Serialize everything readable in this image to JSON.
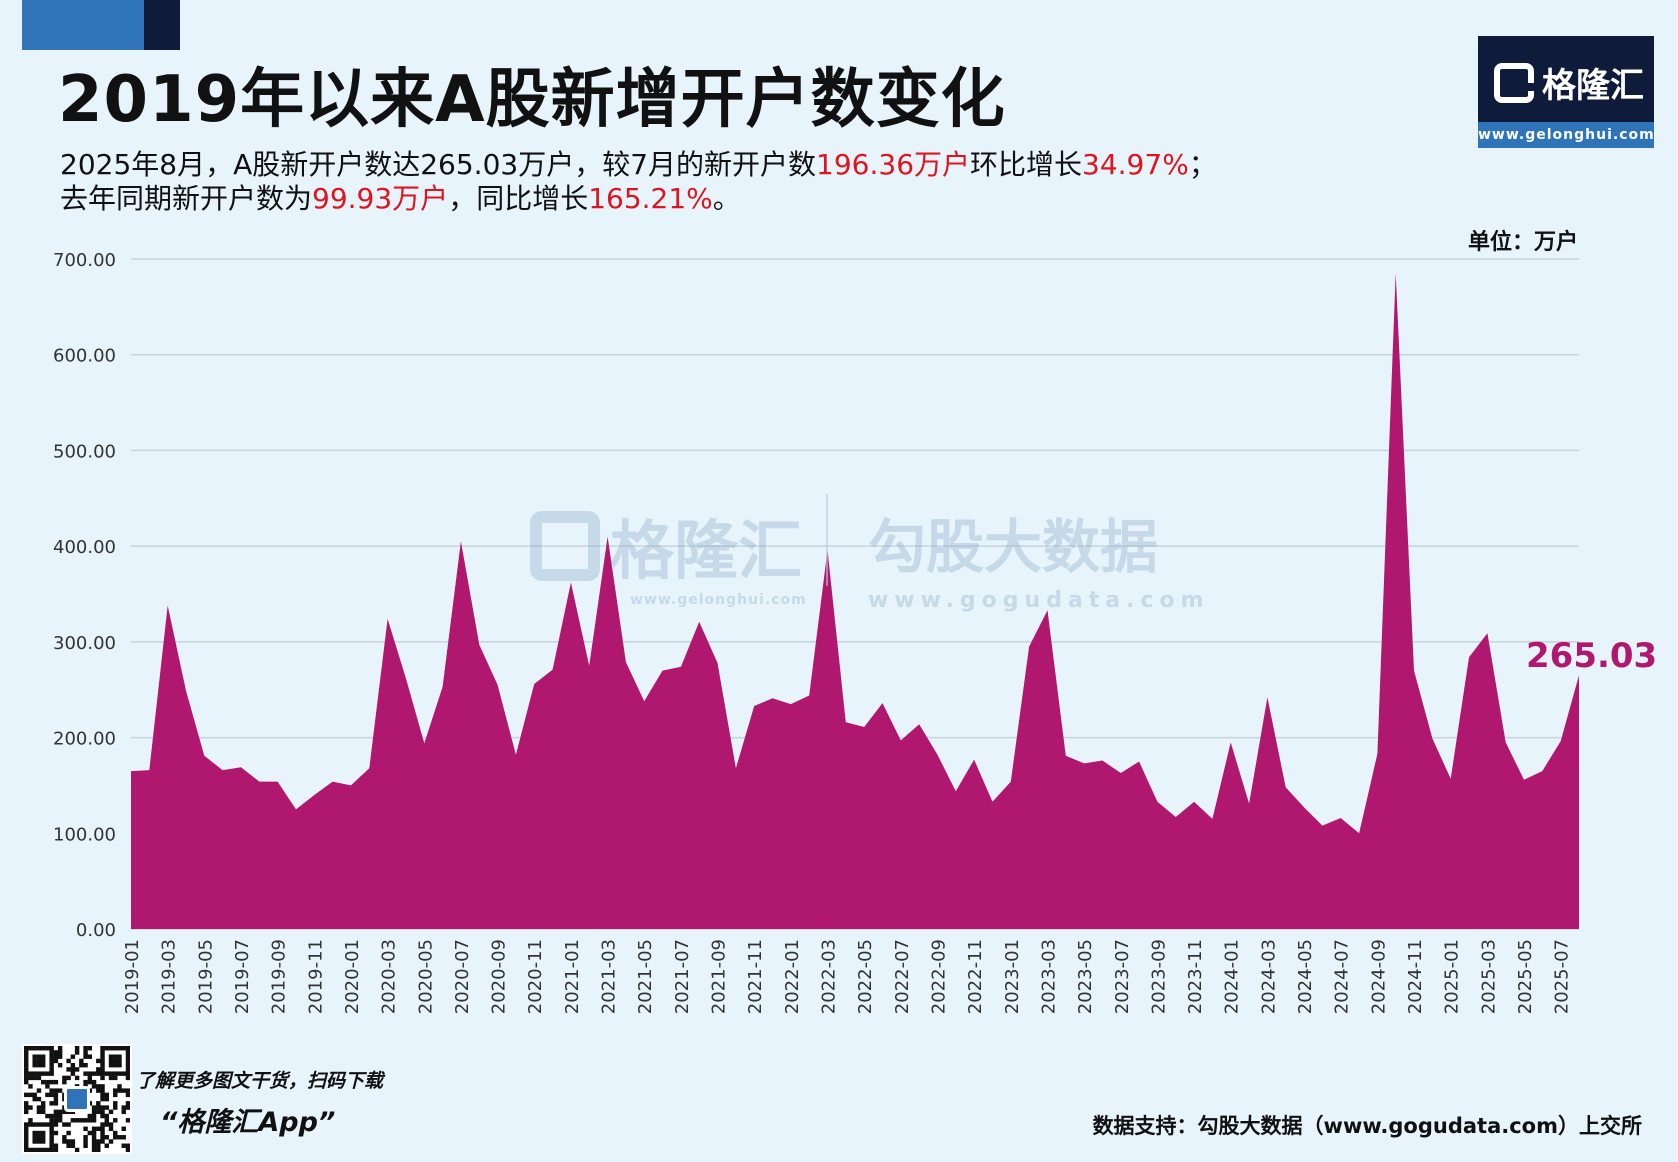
{
  "title": "2019年以来A股新增开户数变化",
  "subtitle": {
    "line1_part1": "2025年8月，A股新开户数达265.03万户，较7月的新开户数",
    "line1_hl1": "196.36万户",
    "line1_part2": "环比增长",
    "line1_hl2": "34.97%",
    "line1_part3": "；",
    "line2_part1": "去年同期新开户数为",
    "line2_hl1": "99.93万户",
    "line2_part2": "，同比增长",
    "line2_hl2": "165.21%",
    "line2_part3": "。"
  },
  "logo": {
    "name": "格隆汇",
    "url": "www.gelonghui.com"
  },
  "unit_label": "单位：万户",
  "watermark": {
    "left_name": "格隆汇",
    "left_url": "www.gelonghui.com",
    "right_name": "勾股大数据",
    "right_url": "www.gogudata.com"
  },
  "last_value_label": "265.03",
  "footer": {
    "promo": "了解更多图文干货，扫码下载",
    "app_name": "“格隆汇App”",
    "source": "数据支持：勾股大数据（www.gogudata.com）上交所"
  },
  "colors": {
    "area": "#b0186f",
    "background": "#e8f4fb",
    "highlight": "#e0141e",
    "grid": "#c5d3dd"
  },
  "chart_data": {
    "type": "area",
    "title": "2019年以来A股新增开户数变化",
    "ylabel": "单位：万户",
    "ylim": [
      0,
      700
    ],
    "yticks": [
      "0.00",
      "100.00",
      "200.00",
      "300.00",
      "400.00",
      "500.00",
      "600.00",
      "700.00"
    ],
    "grid": true,
    "x": [
      "2019-01",
      "2019-02",
      "2019-03",
      "2019-04",
      "2019-05",
      "2019-06",
      "2019-07",
      "2019-08",
      "2019-09",
      "2019-10",
      "2019-11",
      "2019-12",
      "2020-01",
      "2020-02",
      "2020-03",
      "2020-04",
      "2020-05",
      "2020-06",
      "2020-07",
      "2020-08",
      "2020-09",
      "2020-10",
      "2020-11",
      "2020-12",
      "2021-01",
      "2021-02",
      "2021-03",
      "2021-04",
      "2021-05",
      "2021-06",
      "2021-07",
      "2021-08",
      "2021-09",
      "2021-10",
      "2021-11",
      "2021-12",
      "2022-01",
      "2022-02",
      "2022-03",
      "2022-04",
      "2022-05",
      "2022-06",
      "2022-07",
      "2022-08",
      "2022-09",
      "2022-10",
      "2022-11",
      "2022-12",
      "2023-01",
      "2023-02",
      "2023-03",
      "2023-04",
      "2023-05",
      "2023-06",
      "2023-07",
      "2023-08",
      "2023-09",
      "2023-10",
      "2023-11",
      "2023-12",
      "2024-01",
      "2024-02",
      "2024-03",
      "2024-04",
      "2024-05",
      "2024-06",
      "2024-07",
      "2024-08",
      "2024-09",
      "2024-10",
      "2024-11",
      "2024-12",
      "2025-01",
      "2025-02",
      "2025-03",
      "2025-04",
      "2025-05",
      "2025-06",
      "2025-07",
      "2025-08"
    ],
    "xtick_labels": [
      "2019-01",
      "2019-03",
      "2019-05",
      "2019-07",
      "2019-09",
      "2019-11",
      "2020-01",
      "2020-03",
      "2020-05",
      "2020-07",
      "2020-09",
      "2020-11",
      "2021-01",
      "2021-03",
      "2021-05",
      "2021-07",
      "2021-09",
      "2021-11",
      "2022-01",
      "2022-03",
      "2022-05",
      "2022-07",
      "2022-09",
      "2022-11",
      "2023-01",
      "2023-03",
      "2023-05",
      "2023-07",
      "2023-09",
      "2023-11",
      "2024-01",
      "2024-03",
      "2024-05",
      "2024-07",
      "2024-09",
      "2024-11",
      "2025-01",
      "2025-03",
      "2025-05",
      "2025-07"
    ],
    "values": [
      165,
      166,
      338,
      249,
      181,
      166,
      169,
      154,
      154,
      125,
      140,
      154,
      150,
      168,
      324,
      262,
      194,
      253,
      405,
      297,
      255,
      182,
      256,
      271,
      362,
      275,
      410,
      279,
      238,
      270,
      274,
      321,
      278,
      168,
      233,
      241,
      235,
      244,
      396,
      216,
      211,
      236,
      197,
      214,
      182,
      144,
      177,
      133,
      154,
      295,
      333,
      181,
      173,
      176,
      163,
      175,
      133,
      117,
      133,
      115,
      195,
      131,
      242,
      148,
      127,
      108,
      116,
      100,
      183,
      685,
      270,
      199,
      157,
      284,
      309,
      195,
      156,
      165,
      196.36,
      265.03
    ],
    "last_label": "265.03"
  }
}
